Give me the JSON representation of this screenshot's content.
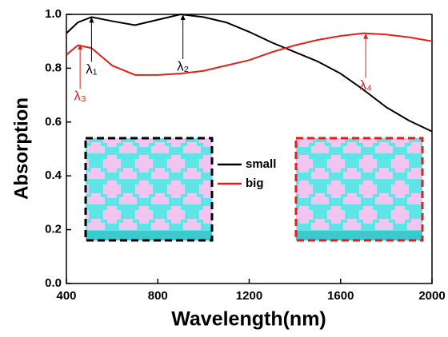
{
  "chart_data": {
    "type": "line",
    "x_label": "Wavelength(nm)",
    "y_label": "Absorption",
    "xlim": [
      400,
      2000
    ],
    "xticks": [
      400,
      800,
      1200,
      1600,
      2000
    ],
    "ylim": [
      0,
      1
    ],
    "yticks": [
      {
        "value": 0,
        "label": "0.0"
      },
      {
        "value": 0.2,
        "label": "0.2"
      },
      {
        "value": 0.4,
        "label": "0.4"
      },
      {
        "value": 0.6,
        "label": "0.6"
      },
      {
        "value": 0.8,
        "label": "0.8"
      },
      {
        "value": 1,
        "label": "1.0"
      }
    ],
    "x": [
      400,
      450,
      510,
      600,
      700,
      800,
      900,
      1000,
      1100,
      1200,
      1300,
      1400,
      1500,
      1600,
      1700,
      1800,
      1900,
      2000
    ],
    "series": [
      {
        "name": "small",
        "color": "#000000",
        "values": [
          0.93,
          0.97,
          0.99,
          0.975,
          0.96,
          0.98,
          1.0,
          0.99,
          0.97,
          0.935,
          0.895,
          0.86,
          0.825,
          0.78,
          0.72,
          0.655,
          0.605,
          0.565
        ]
      },
      {
        "name": "big",
        "color": "#e0201b",
        "values": [
          0.85,
          0.885,
          0.875,
          0.81,
          0.775,
          0.775,
          0.78,
          0.79,
          0.81,
          0.83,
          0.86,
          0.885,
          0.905,
          0.92,
          0.93,
          0.925,
          0.915,
          0.9
        ]
      }
    ],
    "annotations": [
      {
        "text": "λ₁",
        "x": 510,
        "y": 0.99,
        "color": "#000000"
      },
      {
        "text": "λ₂",
        "x": 910,
        "y": 1.0,
        "color": "#000000"
      },
      {
        "text": "λ₃",
        "x": 460,
        "y": 0.89,
        "color": "#e0201b"
      },
      {
        "text": "λ₄",
        "x": 1710,
        "y": 0.93,
        "color": "#e0201b"
      }
    ]
  }
}
